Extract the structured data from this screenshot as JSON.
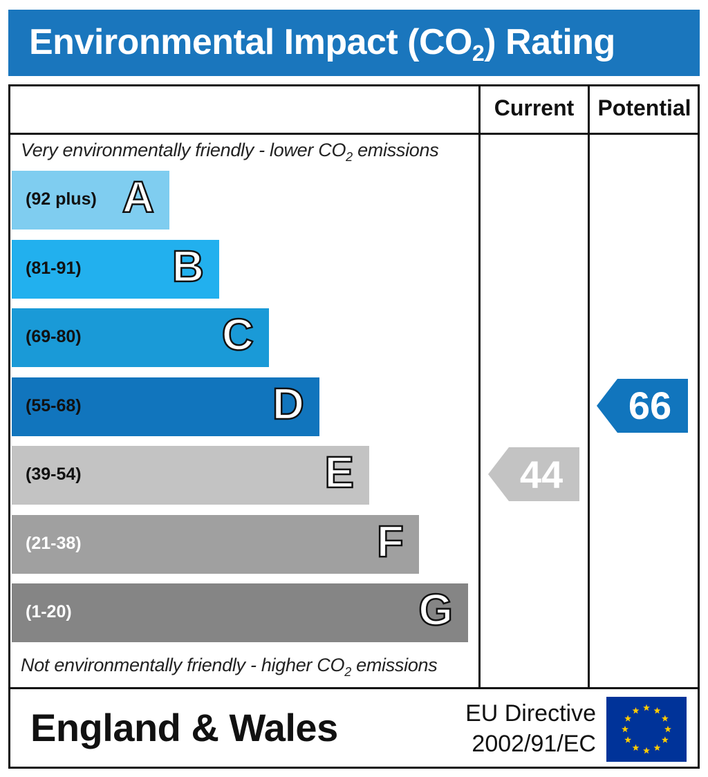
{
  "header": {
    "title_before": "Environmental Impact (CO",
    "title_sub": "2",
    "title_after": ") Rating",
    "color": "#1a76bd"
  },
  "columns": {
    "current": "Current",
    "potential": "Potential"
  },
  "scale": {
    "top_note_before": "Very environmentally friendly - lower CO",
    "top_note_sub": "2",
    "top_note_after": " emissions",
    "bottom_note_before": "Not environmentally friendly - higher CO",
    "bottom_note_sub": "2",
    "bottom_note_after": " emissions"
  },
  "footer": {
    "region": "England & Wales",
    "directive_line1": "EU Directive",
    "directive_line2": "2002/91/EC",
    "flag_color": "#003399",
    "star_color": "#ffcc00",
    "flag_icon": "eu-flag-icon"
  },
  "chart_data": {
    "type": "bar",
    "orientation": "horizontal",
    "bands": [
      {
        "letter": "A",
        "range": "(92 plus)",
        "min": 92,
        "max": null,
        "color": "#7fcdf0",
        "text_color": "#111111"
      },
      {
        "letter": "B",
        "range": "(81-91)",
        "min": 81,
        "max": 91,
        "color": "#22b0ee",
        "text_color": "#111111"
      },
      {
        "letter": "C",
        "range": "(69-80)",
        "min": 69,
        "max": 80,
        "color": "#1a9ad7",
        "text_color": "#111111"
      },
      {
        "letter": "D",
        "range": "(55-68)",
        "min": 55,
        "max": 68,
        "color": "#1175bd",
        "text_color": "#111111"
      },
      {
        "letter": "E",
        "range": "(39-54)",
        "min": 39,
        "max": 54,
        "color": "#c3c3c3",
        "text_color": "#111111"
      },
      {
        "letter": "F",
        "range": "(21-38)",
        "min": 21,
        "max": 38,
        "color": "#a0a0a0",
        "text_color": "#ffffff"
      },
      {
        "letter": "G",
        "range": "(1-20)",
        "min": 1,
        "max": 20,
        "color": "#858585",
        "text_color": "#ffffff"
      }
    ],
    "current": {
      "value": 44,
      "band": "E",
      "color": "#c3c3c3"
    },
    "potential": {
      "value": 66,
      "band": "D",
      "color": "#1175bd"
    }
  }
}
